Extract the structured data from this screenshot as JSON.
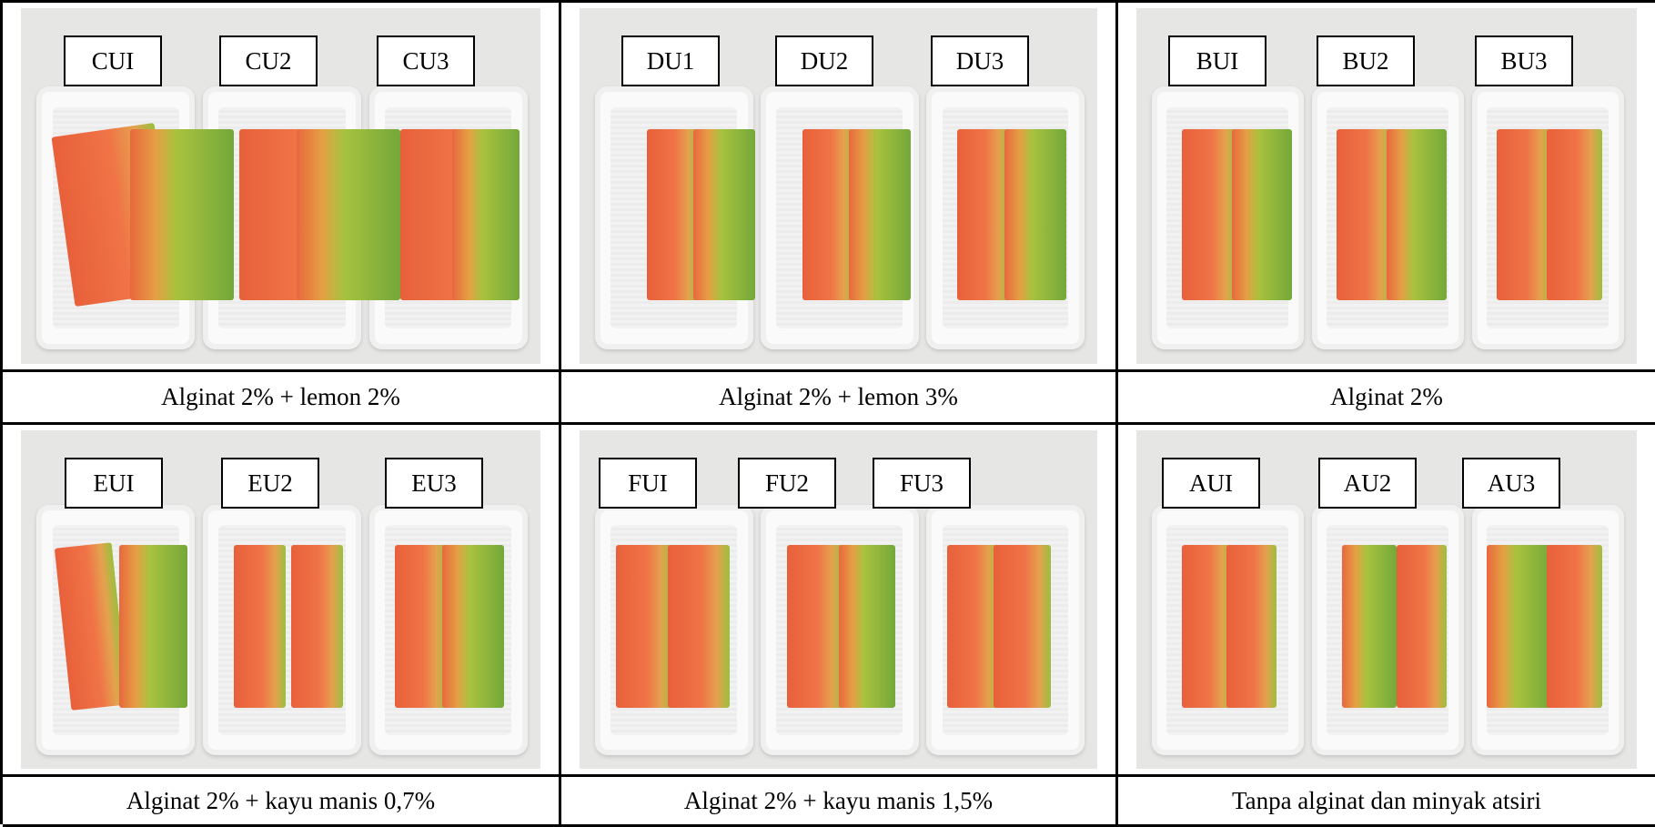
{
  "panels": [
    {
      "labels": [
        "CUI",
        "CU2",
        "CU3"
      ],
      "caption": "Alginat 2% + lemon 2%"
    },
    {
      "labels": [
        "DU1",
        "DU2",
        "DU3"
      ],
      "caption": "Alginat 2% + lemon 3%"
    },
    {
      "labels": [
        "BUI",
        "BU2",
        "BU3"
      ],
      "caption": "Alginat 2%"
    },
    {
      "labels": [
        "EUI",
        "EU2",
        "EU3"
      ],
      "caption": "Alginat 2% + kayu manis 0,7%"
    },
    {
      "labels": [
        "FUI",
        "FU2",
        "FU3"
      ],
      "caption": "Alginat 2% + kayu manis 1,5%"
    },
    {
      "labels": [
        "AUI",
        "AU2",
        "AU3"
      ],
      "caption": "Tanpa alginat dan minyak atsiri"
    }
  ]
}
